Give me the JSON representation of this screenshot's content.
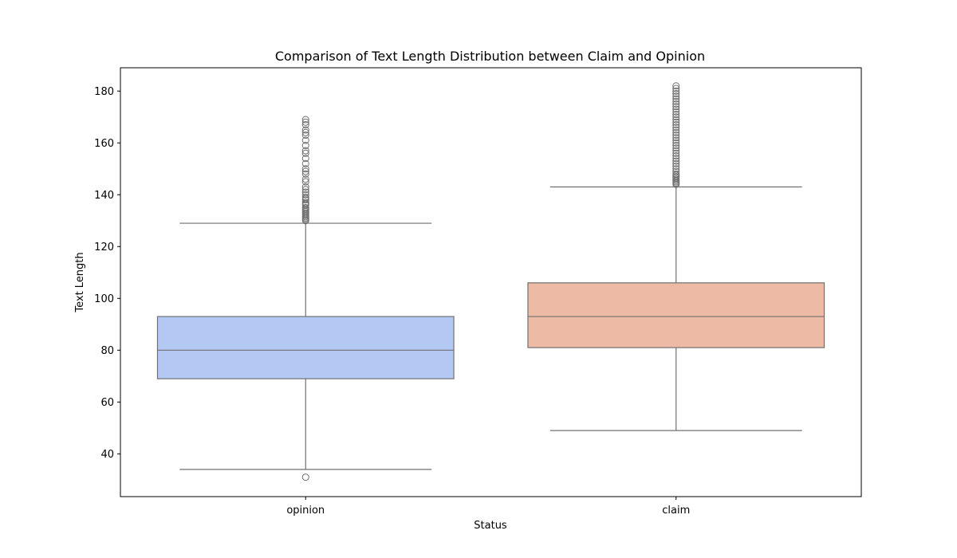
{
  "chart_data": {
    "type": "box",
    "title": "Comparison of Text Length Distribution between Claim and Opinion",
    "xlabel": "Status",
    "ylabel": "Text Length",
    "ylim": [
      23.5,
      189
    ],
    "yticks": [
      40,
      60,
      80,
      100,
      120,
      140,
      160,
      180
    ],
    "grid": false,
    "categories": [
      "opinion",
      "claim"
    ],
    "box_colors": [
      "#b4c8f4",
      "#ecbaa5"
    ],
    "line_color": "#707070",
    "boxes": [
      {
        "category": "opinion",
        "whisker_low": 34,
        "q1": 69,
        "median": 80,
        "q3": 93,
        "whisker_high": 129,
        "outliers": [
          31,
          130,
          130.5,
          131,
          131.5,
          132,
          132.5,
          133,
          133.5,
          134,
          134.5,
          135,
          136,
          136.5,
          137,
          138,
          138.5,
          139,
          140,
          141,
          142,
          143,
          145,
          146,
          148,
          149,
          150,
          152,
          154,
          156,
          157,
          159,
          161,
          163,
          164,
          165,
          167,
          168,
          169
        ]
      },
      {
        "category": "claim",
        "whisker_low": 49,
        "q1": 81,
        "median": 93,
        "q3": 106,
        "whisker_high": 143,
        "outliers": [
          144,
          144.5,
          145,
          145.5,
          146,
          146.5,
          147,
          147.5,
          148,
          149,
          150,
          151,
          152,
          153,
          154,
          155,
          156,
          157,
          158,
          159,
          160,
          161,
          162,
          163,
          164,
          165,
          166,
          167,
          168,
          169,
          170,
          171,
          172,
          173,
          174,
          175,
          176,
          177,
          178,
          179,
          180,
          181,
          182
        ]
      }
    ]
  }
}
